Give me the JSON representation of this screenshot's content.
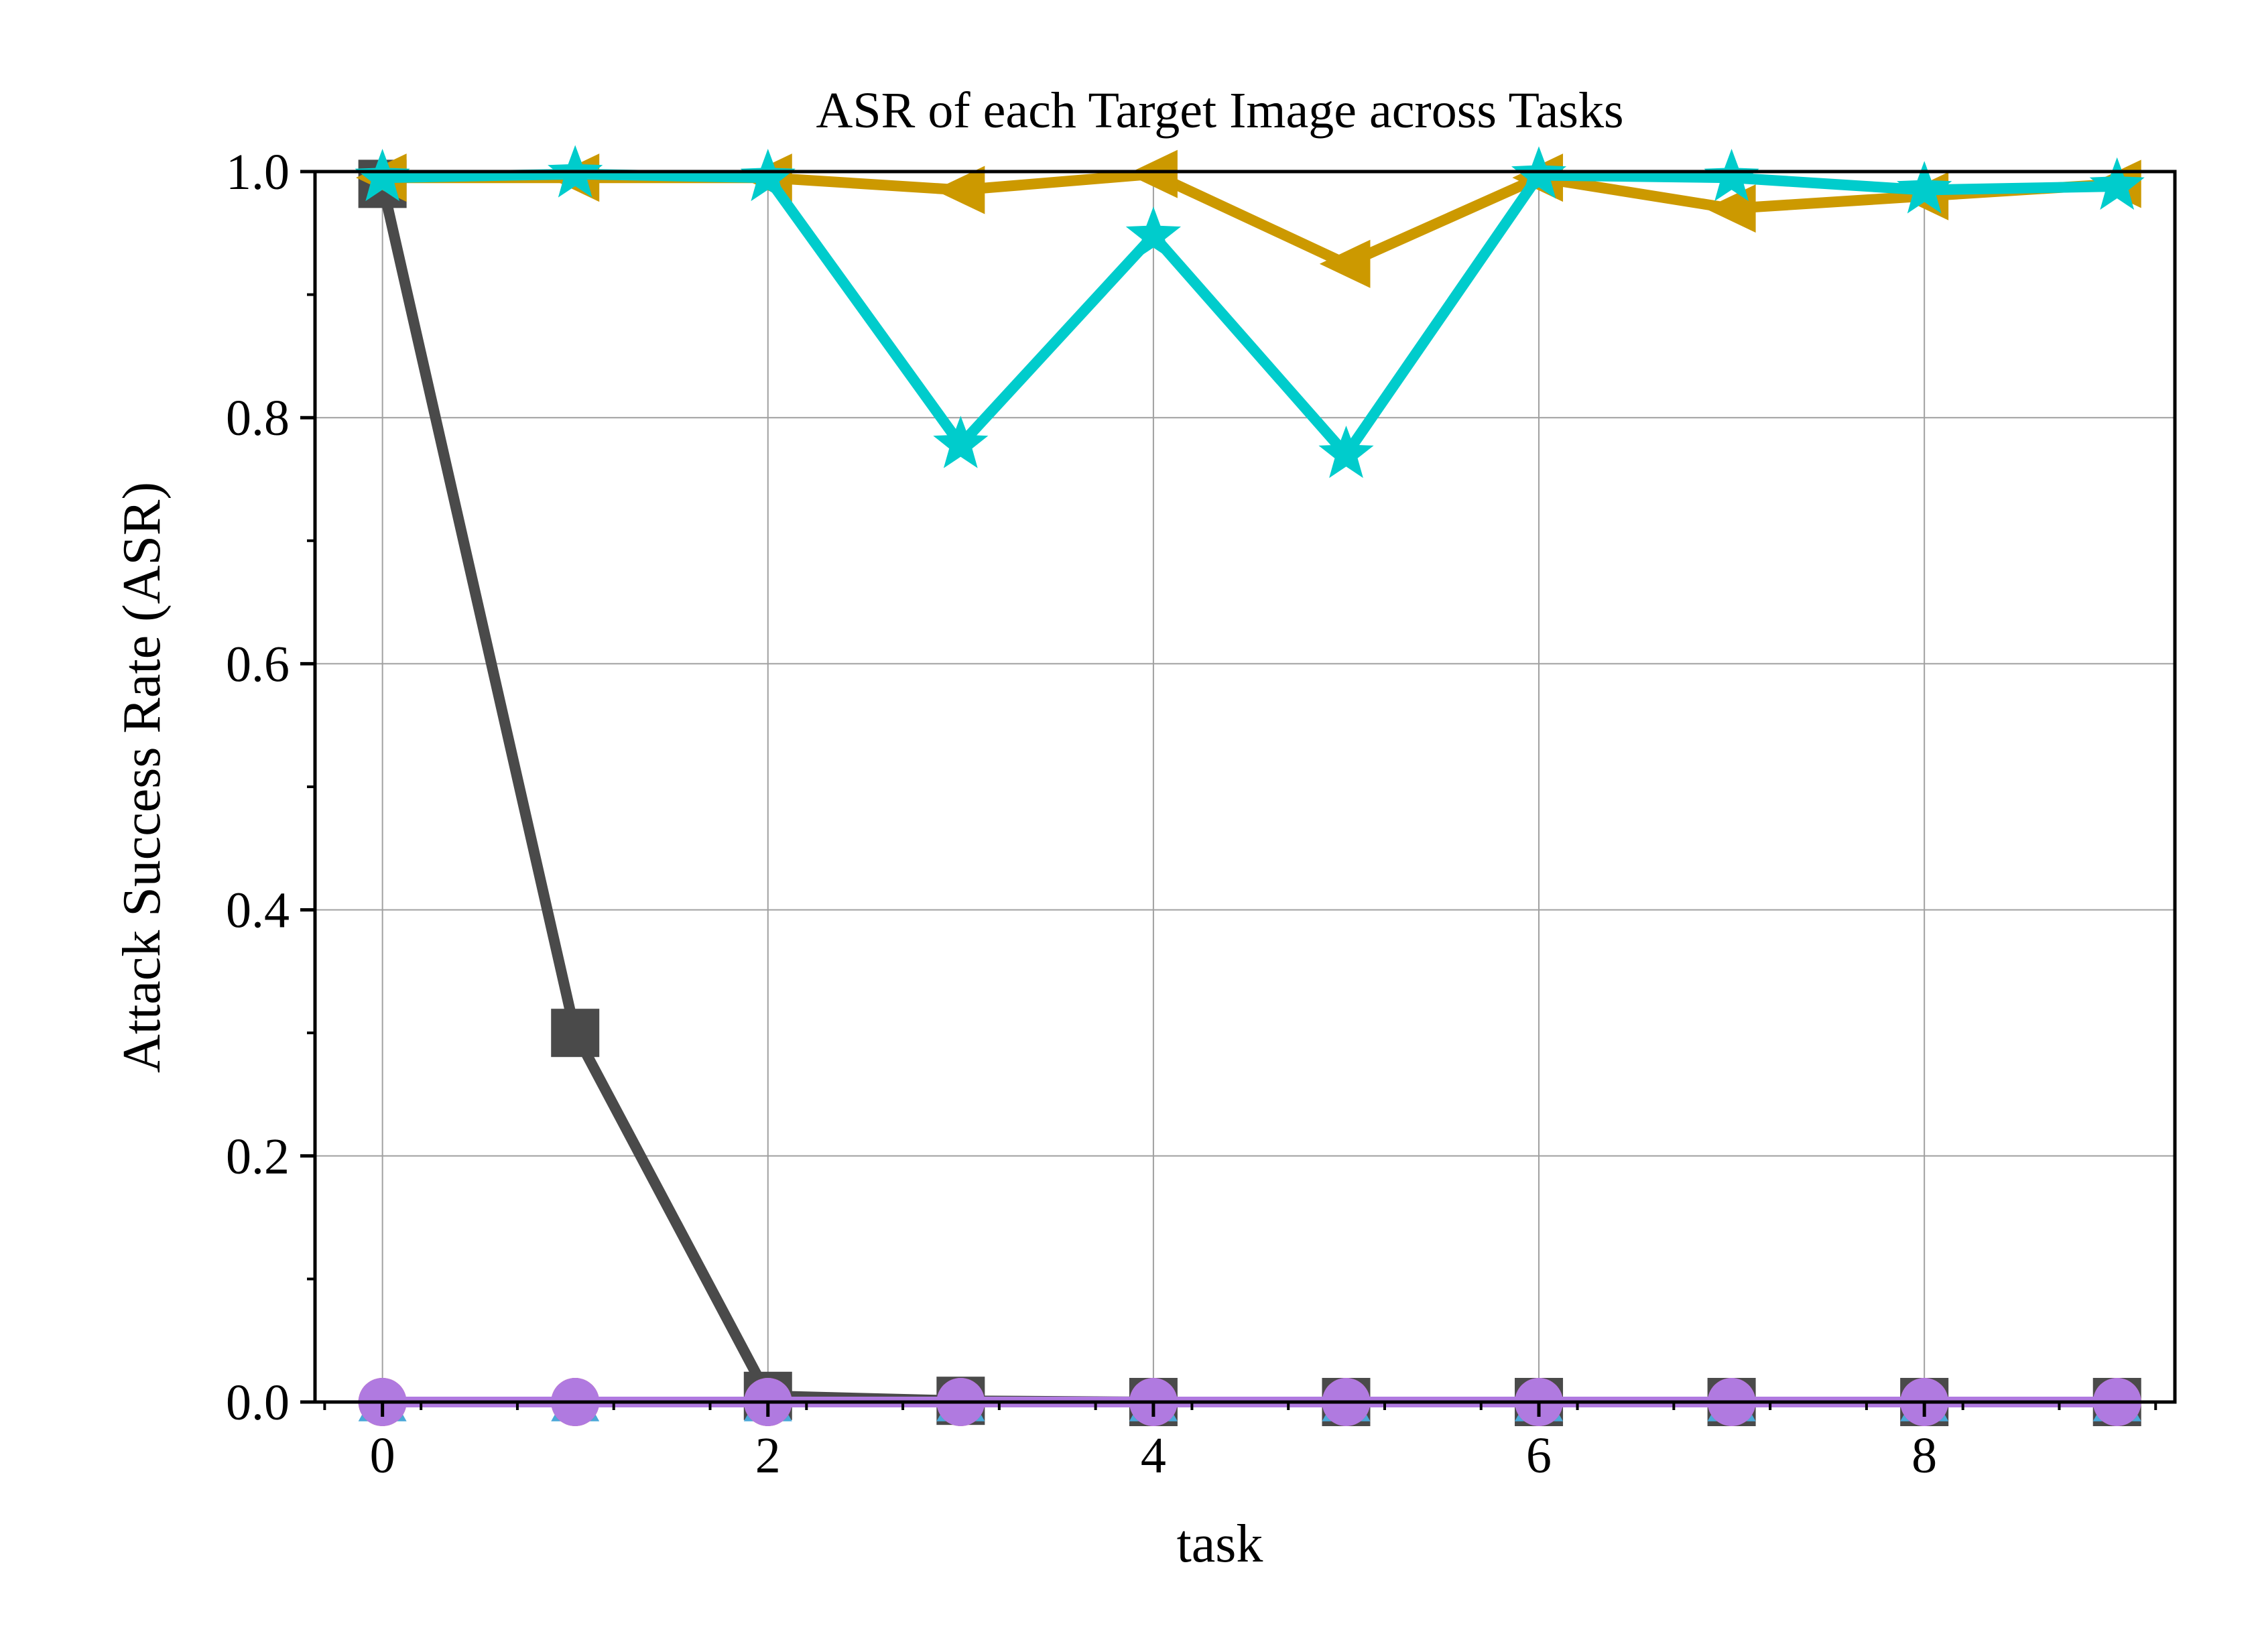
{
  "chart_data": {
    "type": "line",
    "title": "ASR of each Target Image across Tasks",
    "xlabel": "task",
    "ylabel": "Attack Success Rate (ASR)",
    "xlim": [
      -0.35,
      9.3
    ],
    "ylim": [
      0.0,
      1.0
    ],
    "xticks": [
      0,
      2,
      4,
      6,
      8
    ],
    "xtick_labels": [
      "0",
      "2",
      "4",
      "6",
      "8"
    ],
    "yticks": [
      0.0,
      0.2,
      0.4,
      0.6,
      0.8,
      1.0
    ],
    "ytick_labels": [
      "0.0",
      "0.2",
      "0.4",
      "0.6",
      "0.8",
      "1.0"
    ],
    "grid": true,
    "legend": "none",
    "x": [
      0,
      1,
      2,
      3,
      4,
      5,
      6,
      7,
      8,
      9
    ],
    "series": [
      {
        "values": [
          0.99,
          0.3,
          0.005,
          0.001,
          0.0,
          0.0,
          0.0,
          0.0,
          0.0,
          0.0
        ],
        "color": "#4a4a4a",
        "marker": "square"
      },
      {
        "values": [
          0.0,
          0.0,
          0.0,
          0.0,
          0.0,
          0.0,
          0.0,
          0.0,
          0.0,
          0.0
        ],
        "color": "#4aa8d8",
        "marker": "triangle-up"
      },
      {
        "values": [
          0.0,
          0.0,
          0.0,
          0.0,
          0.0,
          0.0,
          0.0,
          0.0,
          0.0,
          0.0
        ],
        "color": "#e0434b",
        "marker": "circle"
      },
      {
        "values": [
          0.995,
          0.995,
          0.995,
          0.985,
          0.998,
          0.925,
          0.995,
          0.97,
          0.98,
          0.99
        ],
        "color": "#cc9900",
        "marker": "triangle-left"
      },
      {
        "values": [
          0.995,
          0.998,
          0.995,
          0.778,
          0.948,
          0.77,
          0.997,
          0.995,
          0.985,
          0.988
        ],
        "color": "#00cccc",
        "marker": "star"
      },
      {
        "values": [
          0.0,
          0.0,
          0.0,
          0.0,
          0.0,
          0.0,
          0.0,
          0.0,
          0.0,
          0.0
        ],
        "color": "#b07ae0",
        "marker": "circle"
      }
    ]
  }
}
